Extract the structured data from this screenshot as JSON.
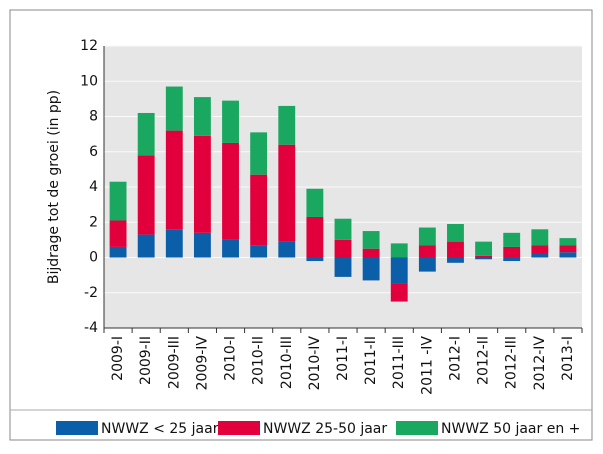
{
  "chart_data": {
    "type": "stacked-bar",
    "y_label": "Bijdrage tot de groei (in pp)",
    "categories": [
      "2009-I",
      "2009-II",
      "2009-III",
      "2009-IV",
      "2010-I",
      "2010-II",
      "2010-III",
      "2010-IV",
      "2011-I",
      "2011-II",
      "2011-III",
      "2011 -IV",
      "2012-I",
      "2012-II",
      "2012-III",
      "2012-IV",
      "2013-I"
    ],
    "series": [
      {
        "name": "NWWZ < 25 jaar",
        "color": "#0b5ea8",
        "values": [
          0.6,
          1.3,
          1.6,
          1.4,
          1.0,
          0.7,
          0.9,
          -0.2,
          -1.1,
          -1.3,
          -1.5,
          -0.8,
          -0.3,
          -0.1,
          -0.2,
          0.2,
          0.3
        ]
      },
      {
        "name": "NWWZ 25-50 jaar",
        "color": "#e2003c",
        "values": [
          1.5,
          4.5,
          5.6,
          5.5,
          5.5,
          4.0,
          5.5,
          2.3,
          1.0,
          0.5,
          -1.0,
          0.7,
          0.9,
          0.1,
          0.6,
          0.5,
          0.4
        ]
      },
      {
        "name": "NWWZ 50 jaar en +",
        "color": "#1aa760",
        "values": [
          2.2,
          2.4,
          2.5,
          2.2,
          2.4,
          2.4,
          2.2,
          1.6,
          1.2,
          1.0,
          0.8,
          1.0,
          1.0,
          0.8,
          0.8,
          0.9,
          0.4
        ]
      }
    ],
    "ylim": [
      -4,
      12
    ],
    "yticks": [
      -4,
      -2,
      0,
      2,
      4,
      6,
      8,
      10,
      12
    ],
    "grid": true
  }
}
